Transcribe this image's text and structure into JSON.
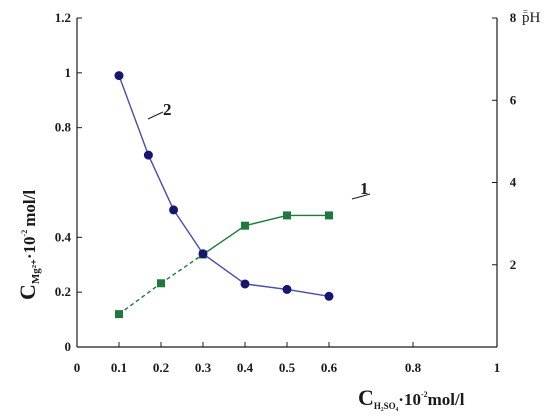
{
  "chart_data": {
    "type": "line",
    "x_ticks": [
      "0",
      "0.1",
      "0.2",
      "0.3",
      "0.4",
      "0.5",
      "0.6",
      "0.8",
      "1"
    ],
    "xlim": [
      0,
      1
    ],
    "left_y_ticks": [
      "0",
      "0.2",
      "0.4",
      "0.8",
      "1",
      "1.2"
    ],
    "left_ylim": [
      0,
      1.2
    ],
    "right_y_ticks": [
      "2",
      "4",
      "6",
      "8"
    ],
    "right_ylim": [
      0,
      8
    ],
    "xlabel": {
      "main": "C",
      "sub": "H₂SO₄",
      "dot": "·",
      "base": "10",
      "exp": "-2",
      "unit": "mol/l"
    },
    "ylabel": {
      "main": "C",
      "sub": "Mg²⁺",
      "dot": "·",
      "base": "10",
      "exp": "-2",
      "unit": "mol/l"
    },
    "right_ylabel": {
      "main": "pH",
      "mark": "="
    },
    "series": [
      {
        "name": "1",
        "axis": "right",
        "marker": "square",
        "color": "#1e7a3c",
        "x": [
          0.1,
          0.2,
          0.3,
          0.4,
          0.5,
          0.6
        ],
        "y": [
          0.8,
          1.55,
          2.25,
          2.95,
          3.2,
          3.2
        ],
        "dashed_segments": [
          0,
          1
        ]
      },
      {
        "name": "2",
        "axis": "left",
        "marker": "circle",
        "color": "#16166e",
        "line_color": "#4a4ab0",
        "x": [
          0.1,
          0.17,
          0.23,
          0.3,
          0.4,
          0.5,
          0.6
        ],
        "y": [
          0.99,
          0.7,
          0.5,
          0.34,
          0.23,
          0.21,
          0.185
        ]
      }
    ],
    "grid": false,
    "legend": "none"
  }
}
